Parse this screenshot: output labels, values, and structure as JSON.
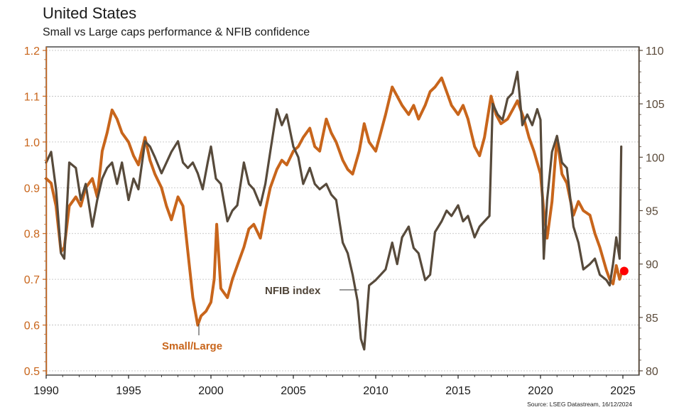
{
  "chart_data": {
    "type": "line",
    "title": "United States",
    "subtitle": "Small vs Large caps performance & NFIB confidence",
    "source": "Source: LSEG Datastream, 16/12/2024",
    "xlabel": "",
    "x_ticks": [
      "1990",
      "1995",
      "2000",
      "2005",
      "2010",
      "2015",
      "2020",
      "2025"
    ],
    "xlim": [
      1990,
      2025.8
    ],
    "left_axis": {
      "label": "",
      "ylim": [
        0.5,
        1.2
      ],
      "ticks": [
        "0.5",
        "0.6",
        "0.7",
        "0.8",
        "0.9",
        "1.0",
        "1.1",
        "1.2"
      ],
      "color": "#c8651b"
    },
    "right_axis": {
      "label": "",
      "ylim": [
        80,
        110
      ],
      "ticks": [
        "80",
        "85",
        "90",
        "95",
        "100",
        "105",
        "110"
      ],
      "color": "#5a4a3a"
    },
    "grid": true,
    "annotations": [
      {
        "text": "Small/Large",
        "series": "Small/Large"
      },
      {
        "text": "NFIB index",
        "series": "NFIB index"
      }
    ],
    "end_marker": {
      "series": "Small/Large",
      "x": 2024.95,
      "y": 0.718,
      "color": "#ff0000"
    },
    "series": [
      {
        "name": "Small/Large",
        "axis": "left",
        "color": "#c8651b",
        "x": [
          1990.0,
          1990.3,
          1990.6,
          1990.9,
          1991.1,
          1991.4,
          1991.8,
          1992.1,
          1992.4,
          1992.8,
          1993.1,
          1993.4,
          1993.7,
          1994.0,
          1994.3,
          1994.6,
          1995.0,
          1995.3,
          1995.6,
          1996.0,
          1996.3,
          1996.6,
          1997.0,
          1997.3,
          1997.6,
          1998.0,
          1998.3,
          1998.6,
          1998.9,
          1999.2,
          1999.4,
          1999.7,
          2000.0,
          2000.2,
          2000.35,
          2000.6,
          2001.0,
          2001.3,
          2001.6,
          2002.0,
          2002.3,
          2002.6,
          2003.0,
          2003.3,
          2003.6,
          2004.0,
          2004.3,
          2004.6,
          2005.0,
          2005.3,
          2005.6,
          2006.0,
          2006.3,
          2006.6,
          2007.0,
          2007.3,
          2007.6,
          2008.0,
          2008.3,
          2008.6,
          2009.0,
          2009.3,
          2009.6,
          2010.0,
          2010.3,
          2010.6,
          2011.0,
          2011.3,
          2011.6,
          2012.0,
          2012.3,
          2012.6,
          2013.0,
          2013.3,
          2013.6,
          2014.0,
          2014.3,
          2014.6,
          2015.0,
          2015.3,
          2015.6,
          2016.0,
          2016.3,
          2016.6,
          2017.0,
          2017.3,
          2017.6,
          2018.0,
          2018.3,
          2018.6,
          2019.0,
          2019.3,
          2019.6,
          2020.0,
          2020.2,
          2020.4,
          2020.7,
          2021.0,
          2021.3,
          2021.6,
          2022.0,
          2022.3,
          2022.6,
          2023.0,
          2023.3,
          2023.6,
          2024.0,
          2024.2,
          2024.4,
          2024.6,
          2024.8,
          2024.95
        ],
        "values": [
          0.92,
          0.91,
          0.86,
          0.76,
          0.77,
          0.86,
          0.88,
          0.86,
          0.9,
          0.92,
          0.88,
          0.98,
          1.02,
          1.07,
          1.05,
          1.02,
          1.0,
          0.97,
          0.95,
          1.01,
          0.96,
          0.93,
          0.9,
          0.86,
          0.83,
          0.88,
          0.86,
          0.76,
          0.66,
          0.6,
          0.62,
          0.63,
          0.65,
          0.7,
          0.82,
          0.68,
          0.66,
          0.7,
          0.73,
          0.77,
          0.81,
          0.82,
          0.79,
          0.85,
          0.9,
          0.94,
          0.96,
          0.95,
          0.98,
          0.99,
          1.01,
          1.03,
          0.99,
          0.98,
          1.05,
          1.02,
          1.0,
          0.96,
          0.94,
          0.93,
          0.98,
          1.04,
          1.0,
          0.98,
          1.02,
          1.06,
          1.12,
          1.1,
          1.08,
          1.06,
          1.08,
          1.05,
          1.08,
          1.11,
          1.12,
          1.14,
          1.11,
          1.08,
          1.06,
          1.08,
          1.05,
          0.99,
          0.97,
          1.01,
          1.1,
          1.06,
          1.04,
          1.05,
          1.07,
          1.09,
          1.05,
          1.01,
          0.98,
          0.93,
          0.85,
          0.79,
          0.87,
          1.01,
          0.93,
          0.91,
          0.84,
          0.87,
          0.85,
          0.84,
          0.8,
          0.77,
          0.72,
          0.7,
          0.69,
          0.73,
          0.7,
          0.718
        ]
      },
      {
        "name": "NFIB index",
        "axis": "right",
        "color": "#574a3b",
        "x": [
          1990.0,
          1990.3,
          1990.6,
          1990.9,
          1991.1,
          1991.4,
          1991.8,
          1992.1,
          1992.4,
          1992.8,
          1993.1,
          1993.4,
          1993.7,
          1994.0,
          1994.3,
          1994.6,
          1995.0,
          1995.3,
          1995.6,
          1996.0,
          1996.3,
          1996.6,
          1997.0,
          1997.3,
          1997.6,
          1998.0,
          1998.3,
          1998.6,
          1998.9,
          1999.2,
          1999.5,
          1999.8,
          2000.0,
          2000.3,
          2000.6,
          2001.0,
          2001.3,
          2001.6,
          2002.0,
          2002.3,
          2002.6,
          2003.0,
          2003.3,
          2003.6,
          2004.0,
          2004.3,
          2004.6,
          2005.0,
          2005.3,
          2005.6,
          2006.0,
          2006.3,
          2006.6,
          2007.0,
          2007.3,
          2007.6,
          2008.0,
          2008.3,
          2008.6,
          2008.9,
          2009.1,
          2009.3,
          2009.6,
          2010.0,
          2010.3,
          2010.6,
          2011.0,
          2011.3,
          2011.6,
          2012.0,
          2012.3,
          2012.6,
          2013.0,
          2013.3,
          2013.6,
          2014.0,
          2014.3,
          2014.6,
          2015.0,
          2015.3,
          2015.6,
          2016.0,
          2016.3,
          2016.6,
          2016.9,
          2017.1,
          2017.4,
          2017.7,
          2018.0,
          2018.3,
          2018.6,
          2018.9,
          2019.2,
          2019.5,
          2019.8,
          2020.0,
          2020.2,
          2020.4,
          2020.7,
          2021.0,
          2021.3,
          2021.6,
          2022.0,
          2022.3,
          2022.6,
          2023.0,
          2023.3,
          2023.6,
          2024.0,
          2024.2,
          2024.4,
          2024.6,
          2024.8,
          2024.9
        ],
        "values": [
          99.5,
          100.5,
          97.0,
          91.0,
          90.5,
          99.5,
          99.0,
          96.0,
          97.5,
          93.5,
          96.0,
          98.0,
          99.0,
          99.5,
          97.5,
          99.5,
          96.0,
          98.0,
          97.0,
          101.5,
          101.0,
          100.0,
          98.5,
          99.5,
          100.5,
          101.5,
          99.5,
          99.0,
          99.5,
          98.5,
          97.0,
          99.5,
          101.0,
          98.0,
          97.5,
          94.0,
          95.0,
          95.5,
          99.5,
          97.5,
          97.0,
          95.5,
          97.5,
          100.5,
          104.5,
          103.0,
          104.0,
          101.0,
          100.0,
          97.5,
          99.0,
          97.5,
          97.0,
          97.5,
          96.5,
          96.0,
          92.0,
          91.0,
          89.0,
          86.5,
          83.0,
          82.0,
          88.0,
          88.5,
          89.0,
          89.5,
          92.0,
          90.0,
          92.5,
          93.5,
          91.5,
          91.0,
          88.5,
          89.0,
          93.0,
          94.0,
          95.0,
          94.5,
          95.5,
          94.0,
          94.5,
          92.5,
          93.5,
          94.0,
          94.5,
          105.0,
          104.0,
          103.5,
          105.5,
          106.0,
          108.0,
          103.0,
          104.0,
          103.0,
          104.5,
          103.5,
          90.5,
          96.0,
          100.5,
          102.0,
          99.5,
          99.0,
          93.5,
          92.0,
          89.5,
          90.0,
          90.5,
          89.0,
          88.5,
          88.0,
          90.0,
          92.5,
          90.5,
          101.0
        ]
      }
    ]
  }
}
